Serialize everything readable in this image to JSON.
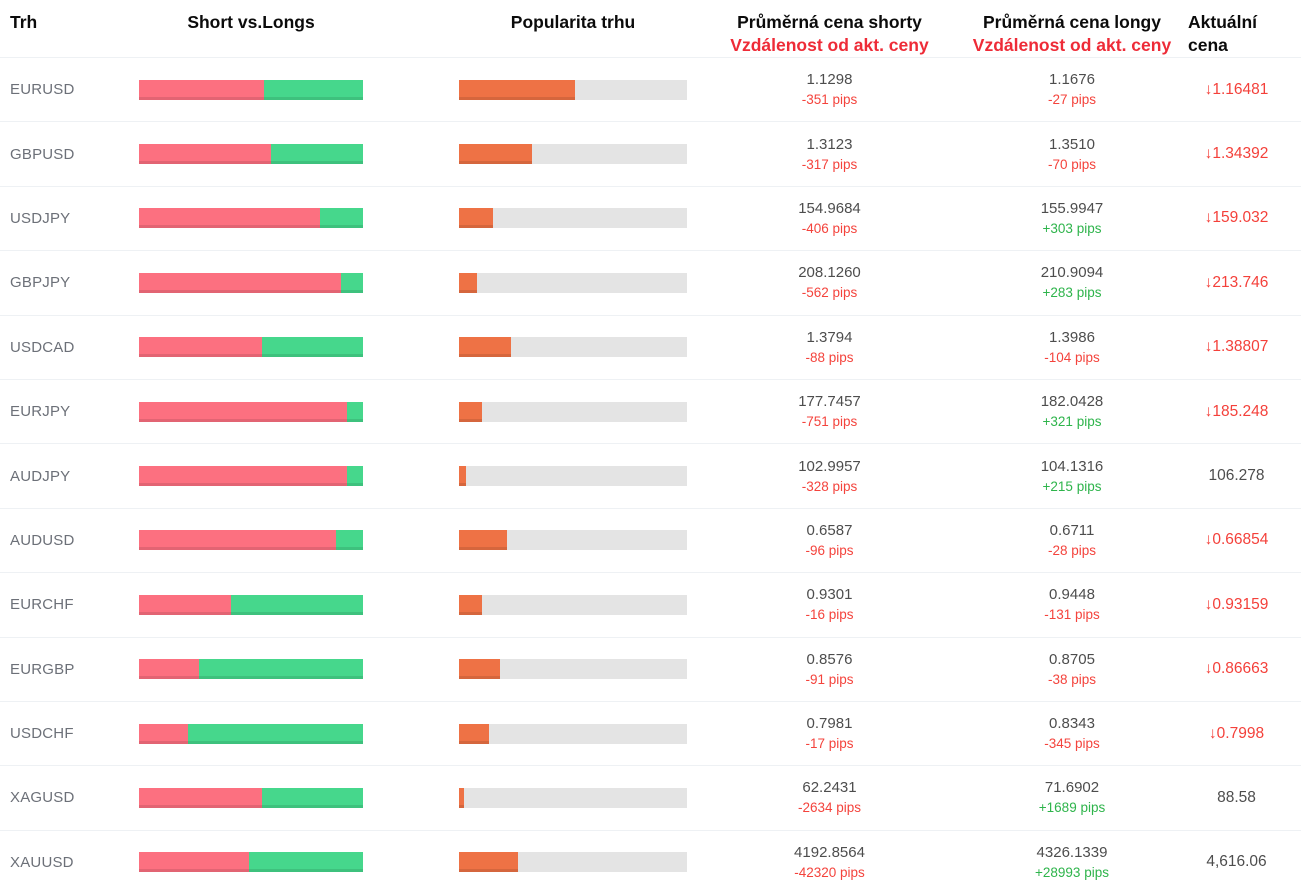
{
  "header": {
    "market": "Trh",
    "ratio": "Short vs.Longs",
    "popularity": "Popularita trhu",
    "short_price_line1": "Průměrná cena shorty",
    "short_price_line2": "Vzdálenost od akt. ceny",
    "long_price_line1": "Průměrná cena longy",
    "long_price_line2": "Vzdálenost od akt. ceny",
    "current_line1": "Aktuální",
    "current_line2": "cena"
  },
  "icons": {
    "down_arrow": "↓"
  },
  "colors": {
    "short_bar": "#fc7080",
    "long_bar": "#46d78c",
    "popularity_bar": "#ee7245",
    "popularity_track": "#e4e4e4",
    "negative_text": "#f4433c",
    "positive_text": "#2eb44b",
    "header_red": "#ee2b37",
    "current_down_red": "#f4403a"
  },
  "rows": [
    {
      "market": "EURUSD",
      "short_pct": 56,
      "popularity_pct": 51,
      "short_price": "1.1298",
      "short_dist": "-351 pips",
      "long_price": "1.1676",
      "long_dist": "-27 pips",
      "current_price": "1.16481",
      "current_dir": "down"
    },
    {
      "market": "GBPUSD",
      "short_pct": 59,
      "popularity_pct": 32,
      "short_price": "1.3123",
      "short_dist": "-317 pips",
      "long_price": "1.3510",
      "long_dist": "-70 pips",
      "current_price": "1.34392",
      "current_dir": "down"
    },
    {
      "market": "USDJPY",
      "short_pct": 81,
      "popularity_pct": 15,
      "short_price": "154.9684",
      "short_dist": "-406 pips",
      "long_price": "155.9947",
      "long_dist": "+303 pips",
      "current_price": "159.032",
      "current_dir": "down"
    },
    {
      "market": "GBPJPY",
      "short_pct": 90,
      "popularity_pct": 8,
      "short_price": "208.1260",
      "short_dist": "-562 pips",
      "long_price": "210.9094",
      "long_dist": "+283 pips",
      "current_price": "213.746",
      "current_dir": "down"
    },
    {
      "market": "USDCAD",
      "short_pct": 55,
      "popularity_pct": 23,
      "short_price": "1.3794",
      "short_dist": "-88 pips",
      "long_price": "1.3986",
      "long_dist": "-104 pips",
      "current_price": "1.38807",
      "current_dir": "down"
    },
    {
      "market": "EURJPY",
      "short_pct": 93,
      "popularity_pct": 10,
      "short_price": "177.7457",
      "short_dist": "-751 pips",
      "long_price": "182.0428",
      "long_dist": "+321 pips",
      "current_price": "185.248",
      "current_dir": "down"
    },
    {
      "market": "AUDJPY",
      "short_pct": 93,
      "popularity_pct": 3,
      "short_price": "102.9957",
      "short_dist": "-328 pips",
      "long_price": "104.1316",
      "long_dist": "+215 pips",
      "current_price": "106.278",
      "current_dir": "none"
    },
    {
      "market": "AUDUSD",
      "short_pct": 88,
      "popularity_pct": 21,
      "short_price": "0.6587",
      "short_dist": "-96 pips",
      "long_price": "0.6711",
      "long_dist": "-28 pips",
      "current_price": "0.66854",
      "current_dir": "down"
    },
    {
      "market": "EURCHF",
      "short_pct": 41,
      "popularity_pct": 10,
      "short_price": "0.9301",
      "short_dist": "-16 pips",
      "long_price": "0.9448",
      "long_dist": "-131 pips",
      "current_price": "0.93159",
      "current_dir": "down"
    },
    {
      "market": "EURGBP",
      "short_pct": 27,
      "popularity_pct": 18,
      "short_price": "0.8576",
      "short_dist": "-91 pips",
      "long_price": "0.8705",
      "long_dist": "-38 pips",
      "current_price": "0.86663",
      "current_dir": "down"
    },
    {
      "market": "USDCHF",
      "short_pct": 22,
      "popularity_pct": 13,
      "short_price": "0.7981",
      "short_dist": "-17 pips",
      "long_price": "0.8343",
      "long_dist": "-345 pips",
      "current_price": "0.7998",
      "current_dir": "down"
    },
    {
      "market": "XAGUSD",
      "short_pct": 55,
      "popularity_pct": 2,
      "short_price": "62.2431",
      "short_dist": "-2634 pips",
      "long_price": "71.6902",
      "long_dist": "+1689 pips",
      "current_price": "88.58",
      "current_dir": "none"
    },
    {
      "market": "XAUUSD",
      "short_pct": 49,
      "popularity_pct": 26,
      "short_price": "4192.8564",
      "short_dist": "-42320 pips",
      "long_price": "4326.1339",
      "long_dist": "+28993 pips",
      "current_price": "4,616.06",
      "current_dir": "none"
    }
  ]
}
